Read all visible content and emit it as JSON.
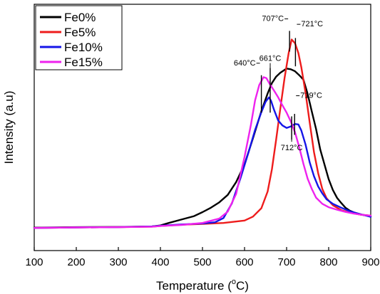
{
  "chart_data": {
    "type": "line",
    "title": "",
    "xlabel": "Temperature (",
    "xlabel_degree": "o",
    "xlabel_suffix": "C)",
    "ylabel": "Intensity (a.u)",
    "xlim": [
      100,
      900
    ],
    "ylim": [
      0,
      1
    ],
    "xticks": [
      100,
      200,
      300,
      400,
      500,
      600,
      700,
      800,
      900
    ],
    "ytick_labels": false,
    "grid": false,
    "legend_position": "top-left",
    "series": [
      {
        "name": "Fe0%",
        "color": "#000000",
        "points": [
          [
            100,
            0.093
          ],
          [
            200,
            0.095
          ],
          [
            300,
            0.096
          ],
          [
            380,
            0.098
          ],
          [
            400,
            0.102
          ],
          [
            420,
            0.112
          ],
          [
            450,
            0.126
          ],
          [
            480,
            0.14
          ],
          [
            500,
            0.156
          ],
          [
            520,
            0.174
          ],
          [
            540,
            0.196
          ],
          [
            560,
            0.226
          ],
          [
            580,
            0.278
          ],
          [
            600,
            0.35
          ],
          [
            620,
            0.456
          ],
          [
            640,
            0.566
          ],
          [
            655,
            0.638
          ],
          [
            665,
            0.68
          ],
          [
            675,
            0.706
          ],
          [
            685,
            0.722
          ],
          [
            700,
            0.739
          ],
          [
            710,
            0.736
          ],
          [
            720,
            0.728
          ],
          [
            730,
            0.712
          ],
          [
            740,
            0.694
          ],
          [
            750,
            0.636
          ],
          [
            760,
            0.564
          ],
          [
            770,
            0.494
          ],
          [
            780,
            0.41
          ],
          [
            790,
            0.35
          ],
          [
            800,
            0.29
          ],
          [
            810,
            0.246
          ],
          [
            820,
            0.214
          ],
          [
            830,
            0.193
          ],
          [
            840,
            0.174
          ],
          [
            850,
            0.162
          ],
          [
            860,
            0.155
          ],
          [
            880,
            0.145
          ],
          [
            900,
            0.14
          ]
        ]
      },
      {
        "name": "Fe5%",
        "color": "#ee1c1c",
        "points": [
          [
            100,
            0.092
          ],
          [
            200,
            0.094
          ],
          [
            300,
            0.095
          ],
          [
            380,
            0.097
          ],
          [
            400,
            0.1
          ],
          [
            450,
            0.105
          ],
          [
            500,
            0.108
          ],
          [
            550,
            0.112
          ],
          [
            600,
            0.122
          ],
          [
            620,
            0.138
          ],
          [
            640,
            0.172
          ],
          [
            655,
            0.24
          ],
          [
            665,
            0.33
          ],
          [
            675,
            0.45
          ],
          [
            685,
            0.575
          ],
          [
            695,
            0.7
          ],
          [
            705,
            0.802
          ],
          [
            712,
            0.857
          ],
          [
            720,
            0.842
          ],
          [
            728,
            0.802
          ],
          [
            735,
            0.745
          ],
          [
            745,
            0.64
          ],
          [
            755,
            0.52
          ],
          [
            765,
            0.4
          ],
          [
            775,
            0.314
          ],
          [
            785,
            0.25
          ],
          [
            795,
            0.212
          ],
          [
            810,
            0.184
          ],
          [
            830,
            0.164
          ],
          [
            850,
            0.154
          ],
          [
            875,
            0.146
          ],
          [
            900,
            0.142
          ]
        ]
      },
      {
        "name": "Fe10%",
        "color": "#1515e8",
        "points": [
          [
            100,
            0.092
          ],
          [
            200,
            0.094
          ],
          [
            300,
            0.095
          ],
          [
            380,
            0.098
          ],
          [
            400,
            0.101
          ],
          [
            450,
            0.106
          ],
          [
            500,
            0.11
          ],
          [
            530,
            0.115
          ],
          [
            550,
            0.132
          ],
          [
            570,
            0.192
          ],
          [
            590,
            0.292
          ],
          [
            610,
            0.402
          ],
          [
            625,
            0.49
          ],
          [
            640,
            0.562
          ],
          [
            650,
            0.604
          ],
          [
            658,
            0.622
          ],
          [
            663,
            0.608
          ],
          [
            670,
            0.572
          ],
          [
            680,
            0.528
          ],
          [
            690,
            0.508
          ],
          [
            700,
            0.498
          ],
          [
            710,
            0.504
          ],
          [
            720,
            0.514
          ],
          [
            728,
            0.512
          ],
          [
            735,
            0.488
          ],
          [
            745,
            0.43
          ],
          [
            755,
            0.358
          ],
          [
            765,
            0.302
          ],
          [
            775,
            0.26
          ],
          [
            785,
            0.232
          ],
          [
            795,
            0.208
          ],
          [
            810,
            0.19
          ],
          [
            830,
            0.174
          ],
          [
            850,
            0.16
          ],
          [
            870,
            0.15
          ],
          [
            900,
            0.137
          ]
        ]
      },
      {
        "name": "Fe15%",
        "color": "#ee22ee",
        "points": [
          [
            100,
            0.092
          ],
          [
            200,
            0.094
          ],
          [
            300,
            0.095
          ],
          [
            380,
            0.097
          ],
          [
            400,
            0.1
          ],
          [
            450,
            0.104
          ],
          [
            500,
            0.112
          ],
          [
            540,
            0.13
          ],
          [
            560,
            0.158
          ],
          [
            580,
            0.23
          ],
          [
            600,
            0.38
          ],
          [
            615,
            0.51
          ],
          [
            625,
            0.61
          ],
          [
            635,
            0.672
          ],
          [
            645,
            0.704
          ],
          [
            652,
            0.7
          ],
          [
            660,
            0.676
          ],
          [
            670,
            0.65
          ],
          [
            680,
            0.622
          ],
          [
            690,
            0.59
          ],
          [
            700,
            0.56
          ],
          [
            710,
            0.524
          ],
          [
            720,
            0.48
          ],
          [
            730,
            0.42
          ],
          [
            740,
            0.352
          ],
          [
            750,
            0.292
          ],
          [
            760,
            0.25
          ],
          [
            770,
            0.215
          ],
          [
            785,
            0.19
          ],
          [
            800,
            0.176
          ],
          [
            820,
            0.166
          ],
          [
            840,
            0.157
          ],
          [
            860,
            0.15
          ],
          [
            880,
            0.145
          ],
          [
            900,
            0.142
          ]
        ]
      }
    ],
    "annotations": [
      {
        "label": "707°C",
        "x": 707,
        "side": "left",
        "y_top": 0.892,
        "y_bottom": 0.808,
        "text_y": 0.932
      },
      {
        "label": "721°C",
        "x": 721,
        "side": "right",
        "y_top": 0.863,
        "y_bottom": 0.748,
        "text_y": 0.91
      },
      {
        "label": "640°C",
        "x": 640,
        "side": "left",
        "y_top": 0.712,
        "y_bottom": 0.56,
        "text_y": 0.752
      },
      {
        "label": "661°C",
        "x": 661,
        "side": "up",
        "y_top": 0.742,
        "y_bottom": 0.56,
        "text_y": 0.77
      },
      {
        "label": "719°C",
        "x": 719,
        "side": "right",
        "y_top": 0.555,
        "y_bottom": 0.47,
        "text_y": 0.62
      },
      {
        "label": "712°C",
        "x": 712,
        "side": "down",
        "y_top": 0.545,
        "y_bottom": 0.45,
        "text_y": 0.407
      }
    ]
  }
}
